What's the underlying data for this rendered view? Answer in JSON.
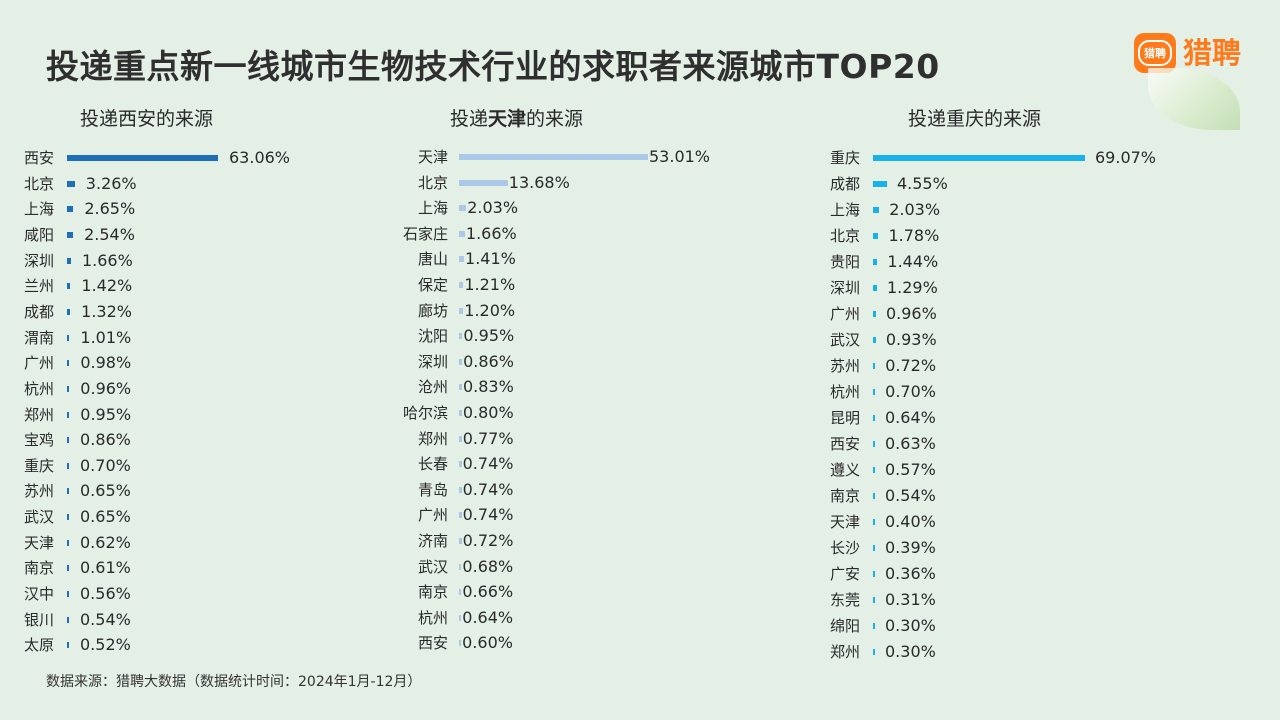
{
  "title": "投递重点新一线城市生物技术行业的求职者来源城市TOP20",
  "logo": {
    "badge": "猎聘",
    "text": "猎聘"
  },
  "source": "数据来源：猎聘大数据（数据统计时间：2024年1月-12月）",
  "chart_data": [
    {
      "type": "bar",
      "title_prefix": "投递",
      "title_city": "西安",
      "title_suffix": "的来源",
      "color": "#1f6fb8",
      "categories": [
        "西安",
        "北京",
        "上海",
        "咸阳",
        "深圳",
        "兰州",
        "成都",
        "渭南",
        "广州",
        "杭州",
        "郑州",
        "宝鸡",
        "重庆",
        "苏州",
        "武汉",
        "天津",
        "南京",
        "汉中",
        "银川",
        "太原"
      ],
      "values": [
        63.06,
        3.26,
        2.65,
        2.54,
        1.66,
        1.42,
        1.32,
        1.01,
        0.98,
        0.96,
        0.95,
        0.86,
        0.7,
        0.65,
        0.65,
        0.62,
        0.61,
        0.56,
        0.54,
        0.52
      ],
      "labels": [
        "63.06%",
        "3.26%",
        "2.65%",
        "2.54%",
        "1.66%",
        "1.42%",
        "1.32%",
        "1.01%",
        "0.98%",
        "0.96%",
        "0.95%",
        "0.86%",
        "0.70%",
        "0.65%",
        "0.65%",
        "0.62%",
        "0.61%",
        "0.56%",
        "0.54%",
        "0.52%"
      ]
    },
    {
      "type": "bar",
      "title_prefix": "投递",
      "title_city": "天津",
      "title_suffix": "的来源",
      "color": "#a9c9e6",
      "categories": [
        "天津",
        "北京",
        "上海",
        "石家庄",
        "唐山",
        "保定",
        "廊坊",
        "沈阳",
        "深圳",
        "沧州",
        "哈尔滨",
        "郑州",
        "长春",
        "青岛",
        "广州",
        "济南",
        "武汉",
        "南京",
        "杭州",
        "西安"
      ],
      "values": [
        53.01,
        13.68,
        2.03,
        1.66,
        1.41,
        1.21,
        1.2,
        0.95,
        0.86,
        0.83,
        0.8,
        0.77,
        0.74,
        0.74,
        0.74,
        0.72,
        0.68,
        0.66,
        0.64,
        0.6
      ],
      "labels": [
        "53.01%",
        "13.68%",
        "2.03%",
        "1.66%",
        "1.41%",
        "1.21%",
        "1.20%",
        "0.95%",
        "0.86%",
        "0.83%",
        "0.80%",
        "0.77%",
        "0.74%",
        "0.74%",
        "0.74%",
        "0.72%",
        "0.68%",
        "0.66%",
        "0.64%",
        "0.60%"
      ]
    },
    {
      "type": "bar",
      "title_prefix": "投递",
      "title_city": "重庆",
      "title_suffix": "的来源",
      "color": "#16b3ea",
      "categories": [
        "重庆",
        "成都",
        "上海",
        "北京",
        "贵阳",
        "深圳",
        "广州",
        "武汉",
        "苏州",
        "杭州",
        "昆明",
        "西安",
        "遵义",
        "南京",
        "天津",
        "长沙",
        "广安",
        "东莞",
        "绵阳",
        "郑州"
      ],
      "values": [
        69.07,
        4.55,
        2.03,
        1.78,
        1.44,
        1.29,
        0.96,
        0.93,
        0.72,
        0.7,
        0.64,
        0.63,
        0.57,
        0.54,
        0.4,
        0.39,
        0.36,
        0.31,
        0.3,
        0.3
      ],
      "labels": [
        "69.07%",
        "4.55%",
        "2.03%",
        "1.78%",
        "1.44%",
        "1.29%",
        "0.96%",
        "0.93%",
        "0.72%",
        "0.70%",
        "0.64%",
        "0.63%",
        "0.57%",
        "0.54%",
        "0.40%",
        "0.39%",
        "0.36%",
        "0.31%",
        "0.30%",
        "0.30%"
      ]
    }
  ]
}
